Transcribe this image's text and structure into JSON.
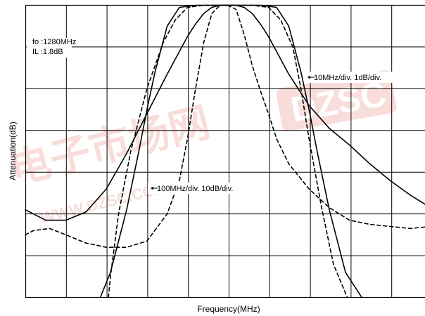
{
  "chart_data": {
    "type": "line",
    "xlabel": "Frequency(MHz)",
    "ylabel": "Attenuation(dB)",
    "grid": true,
    "grid_divisions": {
      "x": 10,
      "y": 7
    },
    "x_scale_note_wide": "100MHz/div.  10dB/div.",
    "x_scale_note_narrow": "10MHz/div.  1dB/div.",
    "annotations": {
      "fo": "fo :1280MHz",
      "il": "IL :1.8dB"
    },
    "watermark": {
      "text_main": "电子市场网",
      "text_url": "WWW.DZSC.COM",
      "text_logo": "DZSC",
      "color": "#f3c2bc"
    },
    "x_center": 1280,
    "series": [
      {
        "style": "solid",
        "scale": "wide",
        "x": [
          -5.0,
          -4.5,
          -4.0,
          -3.5,
          -3.0,
          -2.5,
          -2.0,
          -1.5,
          -1.0,
          -0.8,
          -0.6,
          -0.4,
          -0.2,
          0.0,
          0.2,
          0.4,
          0.6,
          0.8,
          1.0,
          1.5,
          2.0,
          2.5,
          3.0,
          3.5,
          4.0,
          4.5,
          5.0
        ],
        "y": [
          4.9,
          5.15,
          5.15,
          4.95,
          4.4,
          3.55,
          2.6,
          1.65,
          0.75,
          0.45,
          0.2,
          0.05,
          0.0,
          0.0,
          0.0,
          0.05,
          0.2,
          0.45,
          0.75,
          1.65,
          2.4,
          2.95,
          3.35,
          3.8,
          4.2,
          4.55,
          4.85
        ]
      },
      {
        "style": "dashed",
        "scale": "wide",
        "x": [
          -5.0,
          -4.8,
          -4.4,
          -4.0,
          -3.5,
          -3.0,
          -2.5,
          -2.0,
          -1.5,
          -1.2,
          -1.0,
          -0.8,
          -0.6,
          -0.4,
          -0.2,
          0.0,
          0.2,
          0.4,
          0.6,
          0.8,
          1.0,
          1.2,
          1.5,
          2.0,
          2.5,
          3.0,
          3.5,
          4.0,
          4.5,
          5.0
        ],
        "y": [
          5.5,
          5.4,
          5.35,
          5.5,
          5.7,
          5.8,
          5.8,
          5.65,
          5.0,
          4.2,
          3.2,
          2.0,
          0.9,
          0.2,
          0.0,
          0.0,
          0.1,
          0.7,
          1.45,
          2.05,
          2.6,
          3.2,
          3.8,
          4.4,
          4.85,
          5.15,
          5.25,
          5.3,
          5.35,
          5.3
        ]
      },
      {
        "style": "solid",
        "scale": "narrow",
        "x": [
          -3.15,
          -2.9,
          -2.5,
          -2.2,
          -2.0,
          -1.8,
          -1.5,
          -1.2,
          -0.8,
          -0.4,
          0.0,
          0.4,
          0.8,
          1.2,
          1.5,
          1.8,
          2.0,
          2.2,
          2.5,
          2.9,
          3.3
        ],
        "y": [
          7.0,
          6.4,
          4.9,
          3.5,
          2.5,
          1.6,
          0.5,
          0.05,
          0.0,
          0.0,
          0.0,
          0.0,
          0.0,
          0.05,
          0.5,
          1.6,
          2.5,
          3.5,
          4.9,
          6.4,
          7.0
        ]
      },
      {
        "style": "dashed",
        "scale": "narrow",
        "x": [
          -2.95,
          -2.9,
          -2.7,
          -2.4,
          -2.0,
          -1.6,
          -1.3,
          -1.0,
          -0.6,
          0.0,
          0.6,
          1.0,
          1.3,
          1.6,
          1.8,
          2.0,
          2.3,
          2.6,
          2.9,
          2.95
        ],
        "y": [
          7.0,
          6.5,
          5.0,
          3.5,
          2.0,
          0.9,
          0.35,
          0.05,
          0.0,
          0.0,
          0.0,
          0.05,
          0.35,
          1.0,
          2.0,
          3.2,
          4.8,
          6.2,
          6.9,
          7.0
        ]
      }
    ]
  }
}
